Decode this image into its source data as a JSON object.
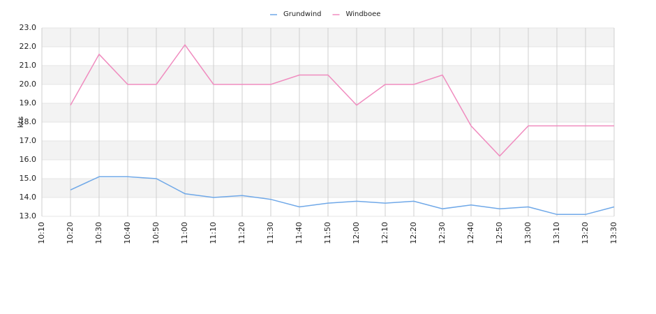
{
  "chart_data": {
    "type": "line",
    "y_label": "kts",
    "categories": [
      "10:10",
      "10:20",
      "10:30",
      "10:40",
      "10:50",
      "11:00",
      "11:10",
      "11:20",
      "11:30",
      "11:40",
      "11:50",
      "12:00",
      "12:10",
      "12:20",
      "12:30",
      "12:40",
      "12:50",
      "13:00",
      "13:10",
      "13:20",
      "13:30"
    ],
    "series": [
      {
        "name": "Grundwind",
        "color": "#6fa8e8",
        "values": [
          null,
          14.4,
          15.1,
          15.1,
          15.0,
          14.2,
          14.0,
          14.1,
          13.9,
          13.5,
          13.7,
          13.8,
          13.7,
          13.8,
          13.4,
          13.6,
          13.4,
          13.5,
          13.1,
          13.1,
          13.5
        ]
      },
      {
        "name": "Windboee",
        "color": "#f08cbf",
        "values": [
          null,
          18.9,
          21.6,
          20.0,
          20.0,
          22.1,
          20.0,
          20.0,
          20.0,
          20.5,
          20.5,
          18.9,
          20.0,
          20.0,
          20.5,
          17.8,
          16.2,
          17.8,
          17.8,
          17.8,
          17.8
        ]
      }
    ],
    "ylim": [
      13,
      23
    ],
    "yticks": [
      {
        "value": 13,
        "label": "13.0"
      },
      {
        "value": 14,
        "label": "14.0"
      },
      {
        "value": 15,
        "label": "15.0"
      },
      {
        "value": 16,
        "label": "16.0"
      },
      {
        "value": 17,
        "label": "17.0"
      },
      {
        "value": 18,
        "label": "18.0"
      },
      {
        "value": 19,
        "label": "19.0"
      },
      {
        "value": 20,
        "label": "20.0"
      },
      {
        "value": 21,
        "label": "21.0"
      },
      {
        "value": 22,
        "label": "22.0"
      },
      {
        "value": 23,
        "label": "23.0"
      }
    ],
    "grid": true
  }
}
